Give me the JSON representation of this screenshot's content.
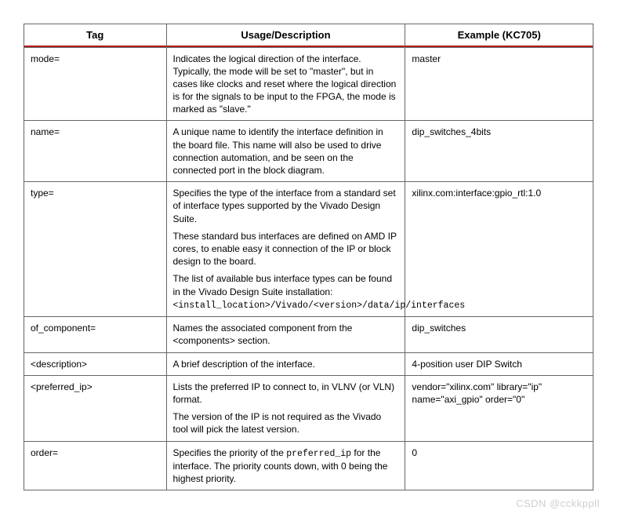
{
  "table": {
    "columns": [
      {
        "label": "Tag",
        "width": "25%"
      },
      {
        "label": "Usage/Description",
        "width": "42%"
      },
      {
        "label": "Example (KC705)",
        "width": "33%"
      }
    ],
    "border_color": "#666666",
    "accent_color": "#b31b1b",
    "rows": [
      {
        "tag": "mode=",
        "desc_paras": [
          "Indicates the logical direction of the interface. Typically, the mode will be set to \"master\", but in cases like clocks and reset where the logical direction is for the signals to be input to the FPGA, the mode is marked as \"slave.\""
        ],
        "example": "master"
      },
      {
        "tag": "name=",
        "desc_paras": [
          "A unique name to identify the interface definition in the board file. This name will also be used to drive connection automation, and be seen on the connected port in the block diagram."
        ],
        "example": "dip_switches_4bits"
      },
      {
        "tag": "type=",
        "desc_paras": [
          "Specifies the type of the interface from a standard set of interface types supported by the Vivado Design Suite.",
          "These standard bus interfaces are defined on AMD IP cores, to enable easy it connection of the IP or block design to the board.",
          "The list of available bus interface types can be found in the Vivado Design Suite installation: ||MONO||<install_location>/Vivado/<version>/data/ip/interfaces||/MONO||"
        ],
        "example": "xilinx.com:interface:gpio_rtl:1.0"
      },
      {
        "tag": "of_component=",
        "desc_paras": [
          "Names the associated component from the <components> section."
        ],
        "example": "dip_switches"
      },
      {
        "tag": "<description>",
        "desc_paras": [
          "A brief description of the interface."
        ],
        "example": "4-position user DIP Switch"
      },
      {
        "tag": "<preferred_ip>",
        "desc_paras": [
          "Lists the preferred IP to connect to, in VLNV (or VLN) format.",
          "The version of the IP is not required as the Vivado tool will pick the latest version."
        ],
        "example": "vendor=\"xilinx.com\" library=\"ip\" name=\"axi_gpio\" order=\"0\""
      },
      {
        "tag": "order=",
        "desc_paras": [
          "Specifies the priority of the ||MONO||preferred_ip||/MONO|| for the interface. The priority counts down, with 0 being the highest priority."
        ],
        "example": "0"
      }
    ]
  },
  "watermark": "CSDN @cckkppll"
}
